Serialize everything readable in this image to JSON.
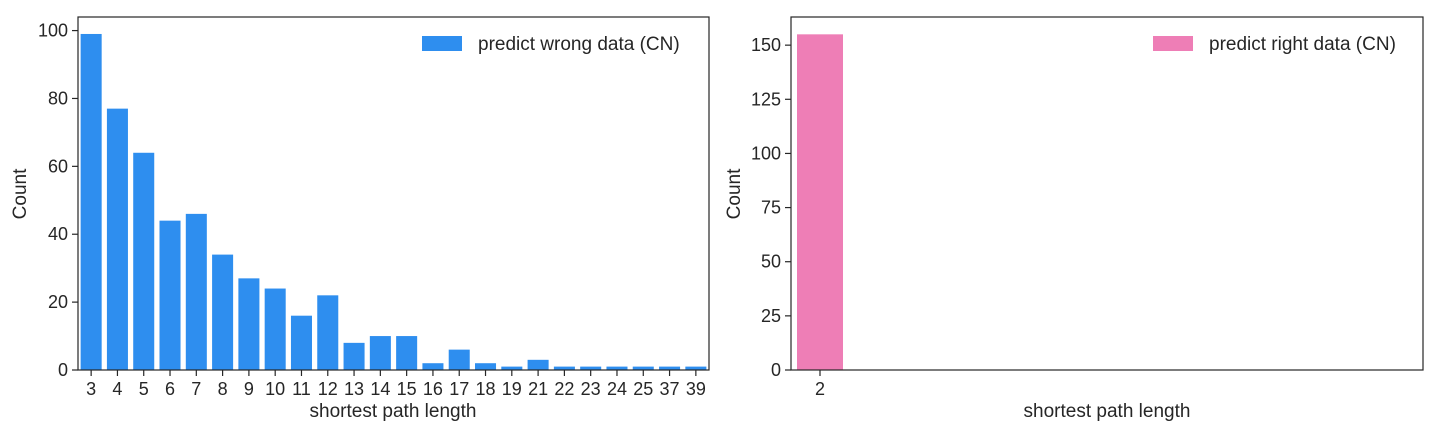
{
  "chart_data": [
    {
      "type": "bar",
      "categories": [
        "3",
        "4",
        "5",
        "6",
        "7",
        "8",
        "9",
        "10",
        "11",
        "12",
        "13",
        "14",
        "15",
        "16",
        "17",
        "18",
        "19",
        "21",
        "22",
        "23",
        "24",
        "25",
        "37",
        "39"
      ],
      "series": [
        {
          "name": "predict wrong data (CN)",
          "values": [
            99,
            77,
            64,
            44,
            46,
            34,
            27,
            24,
            16,
            22,
            8,
            10,
            10,
            2,
            6,
            2,
            1,
            3,
            1,
            1,
            1,
            1,
            1,
            1
          ]
        }
      ],
      "xlabel": "shortest path length",
      "ylabel": "Count",
      "ylim": [
        0,
        104
      ],
      "yticks": [
        0,
        20,
        40,
        60,
        80,
        100
      ],
      "color": "#2E8EEF",
      "legend_position": "top-right",
      "grid": false
    },
    {
      "type": "bar",
      "categories": [
        "2"
      ],
      "series": [
        {
          "name": "predict right data (CN)",
          "values": [
            155
          ]
        }
      ],
      "xlabel": "shortest path length",
      "ylabel": "Count",
      "ylim": [
        0,
        163
      ],
      "yticks": [
        0,
        25,
        50,
        75,
        100,
        125,
        150
      ],
      "color": "#EE7EB6",
      "legend_position": "top-right",
      "grid": false
    }
  ]
}
